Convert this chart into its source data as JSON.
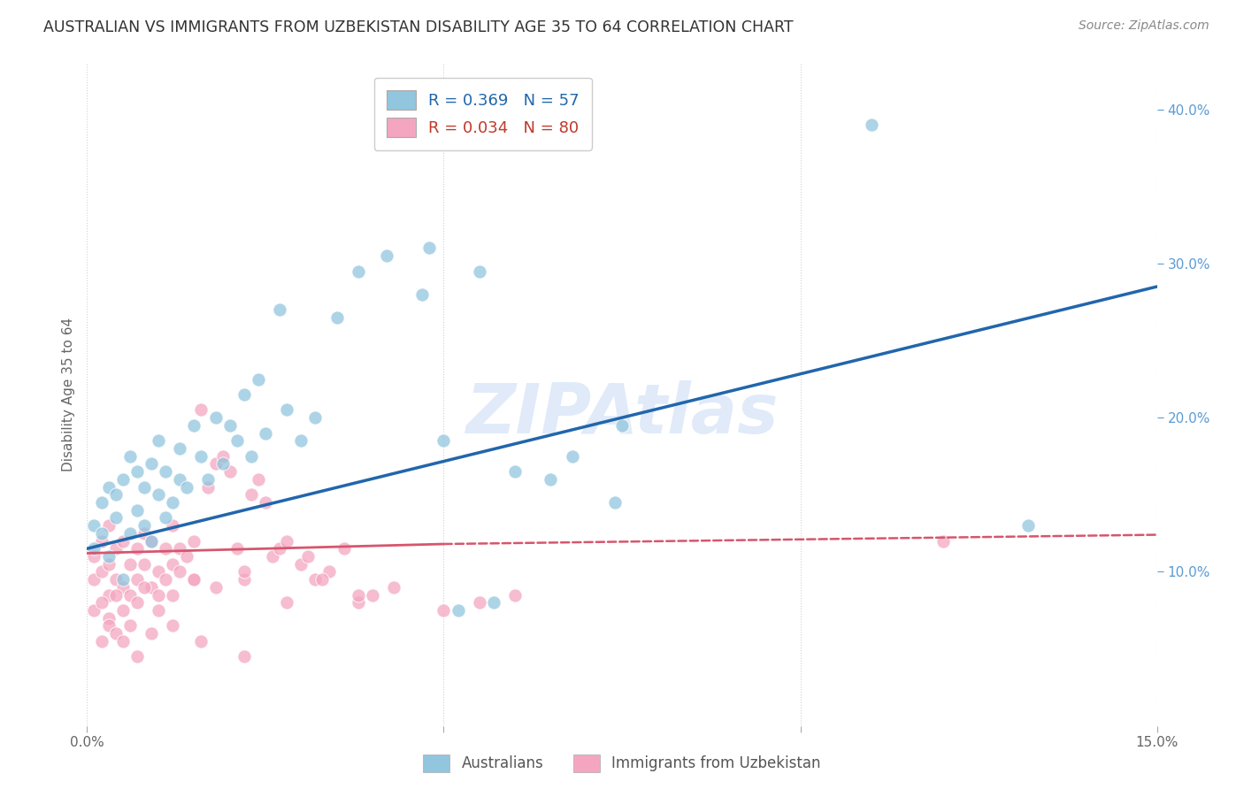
{
  "title": "AUSTRALIAN VS IMMIGRANTS FROM UZBEKISTAN DISABILITY AGE 35 TO 64 CORRELATION CHART",
  "source": "Source: ZipAtlas.com",
  "ylabel": "Disability Age 35 to 64",
  "xlim": [
    0.0,
    0.15
  ],
  "ylim": [
    0.0,
    0.43
  ],
  "xtick_positions": [
    0.0,
    0.05,
    0.1,
    0.15
  ],
  "xticklabels": [
    "0.0%",
    "",
    "",
    "15.0%"
  ],
  "yticks_right": [
    0.1,
    0.2,
    0.3,
    0.4
  ],
  "ytick_labels_right": [
    "10.0%",
    "20.0%",
    "30.0%",
    "40.0%"
  ],
  "australians_color": "#92c5de",
  "uzbekistan_color": "#f4a6c0",
  "trend_aus_color": "#2166ac",
  "trend_uzb_color": "#d6566e",
  "background_color": "#ffffff",
  "grid_color": "#cccccc",
  "watermark": "ZIPAtlas",
  "aus_trend_x0": 0.0,
  "aus_trend_y0": 0.115,
  "aus_trend_x1": 0.15,
  "aus_trend_y1": 0.285,
  "uzb_trend_x0": 0.0,
  "uzb_trend_y0": 0.112,
  "uzb_trend_x1": 0.05,
  "uzb_trend_y1": 0.118,
  "uzb_trend_dash_x0": 0.05,
  "uzb_trend_dash_y0": 0.118,
  "uzb_trend_dash_x1": 0.15,
  "uzb_trend_dash_y1": 0.124,
  "australians_x": [
    0.001,
    0.001,
    0.002,
    0.002,
    0.003,
    0.003,
    0.004,
    0.004,
    0.005,
    0.005,
    0.006,
    0.006,
    0.007,
    0.007,
    0.008,
    0.008,
    0.009,
    0.009,
    0.01,
    0.01,
    0.011,
    0.011,
    0.012,
    0.013,
    0.013,
    0.014,
    0.015,
    0.016,
    0.017,
    0.018,
    0.019,
    0.02,
    0.021,
    0.022,
    0.023,
    0.024,
    0.025,
    0.027,
    0.028,
    0.03,
    0.032,
    0.035,
    0.038,
    0.042,
    0.047,
    0.05,
    0.055,
    0.06,
    0.065,
    0.068,
    0.048,
    0.052,
    0.057,
    0.074,
    0.11,
    0.132,
    0.075
  ],
  "australians_y": [
    0.13,
    0.115,
    0.145,
    0.125,
    0.11,
    0.155,
    0.135,
    0.15,
    0.095,
    0.16,
    0.125,
    0.175,
    0.14,
    0.165,
    0.13,
    0.155,
    0.12,
    0.17,
    0.15,
    0.185,
    0.135,
    0.165,
    0.145,
    0.16,
    0.18,
    0.155,
    0.195,
    0.175,
    0.16,
    0.2,
    0.17,
    0.195,
    0.185,
    0.215,
    0.175,
    0.225,
    0.19,
    0.27,
    0.205,
    0.185,
    0.2,
    0.265,
    0.295,
    0.305,
    0.28,
    0.185,
    0.295,
    0.165,
    0.16,
    0.175,
    0.31,
    0.075,
    0.08,
    0.145,
    0.39,
    0.13,
    0.195
  ],
  "uzbekistan_x": [
    0.001,
    0.001,
    0.002,
    0.002,
    0.003,
    0.003,
    0.003,
    0.004,
    0.004,
    0.005,
    0.005,
    0.006,
    0.006,
    0.007,
    0.007,
    0.008,
    0.008,
    0.009,
    0.009,
    0.01,
    0.01,
    0.011,
    0.011,
    0.012,
    0.012,
    0.013,
    0.013,
    0.014,
    0.015,
    0.015,
    0.016,
    0.017,
    0.018,
    0.019,
    0.02,
    0.021,
    0.022,
    0.023,
    0.024,
    0.025,
    0.026,
    0.027,
    0.028,
    0.03,
    0.031,
    0.032,
    0.034,
    0.036,
    0.038,
    0.04,
    0.001,
    0.002,
    0.003,
    0.004,
    0.005,
    0.006,
    0.007,
    0.008,
    0.01,
    0.012,
    0.015,
    0.018,
    0.022,
    0.028,
    0.033,
    0.038,
    0.043,
    0.05,
    0.055,
    0.06,
    0.002,
    0.003,
    0.004,
    0.005,
    0.007,
    0.009,
    0.012,
    0.016,
    0.022,
    0.12
  ],
  "uzbekistan_y": [
    0.11,
    0.095,
    0.12,
    0.1,
    0.085,
    0.105,
    0.13,
    0.095,
    0.115,
    0.09,
    0.12,
    0.105,
    0.085,
    0.115,
    0.095,
    0.125,
    0.105,
    0.09,
    0.12,
    0.1,
    0.085,
    0.115,
    0.095,
    0.13,
    0.105,
    0.115,
    0.1,
    0.11,
    0.12,
    0.095,
    0.205,
    0.155,
    0.17,
    0.175,
    0.165,
    0.115,
    0.095,
    0.15,
    0.16,
    0.145,
    0.11,
    0.115,
    0.12,
    0.105,
    0.11,
    0.095,
    0.1,
    0.115,
    0.08,
    0.085,
    0.075,
    0.08,
    0.07,
    0.085,
    0.075,
    0.065,
    0.08,
    0.09,
    0.075,
    0.085,
    0.095,
    0.09,
    0.1,
    0.08,
    0.095,
    0.085,
    0.09,
    0.075,
    0.08,
    0.085,
    0.055,
    0.065,
    0.06,
    0.055,
    0.045,
    0.06,
    0.065,
    0.055,
    0.045,
    0.12
  ]
}
